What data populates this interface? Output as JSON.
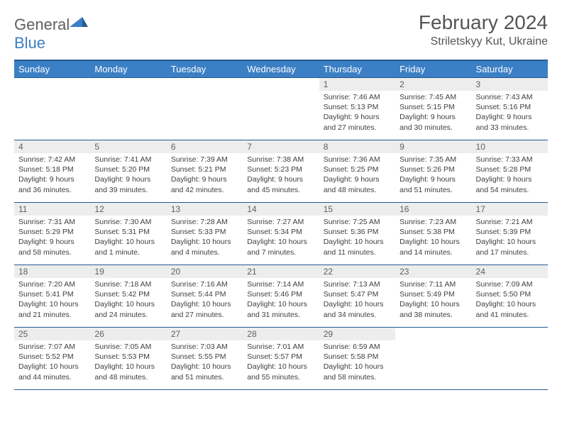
{
  "brand": {
    "name1": "General",
    "name2": "Blue"
  },
  "title": "February 2024",
  "location": "Striletskyy Kut, Ukraine",
  "colors": {
    "primary": "#3b7fc4",
    "header_rule": "#255a8f",
    "daynum_bg": "#ededed",
    "text": "#404040"
  },
  "weekdays": [
    "Sunday",
    "Monday",
    "Tuesday",
    "Wednesday",
    "Thursday",
    "Friday",
    "Saturday"
  ],
  "weeks": [
    [
      {
        "n": "",
        "sr": "",
        "ss": "",
        "dl": ""
      },
      {
        "n": "",
        "sr": "",
        "ss": "",
        "dl": ""
      },
      {
        "n": "",
        "sr": "",
        "ss": "",
        "dl": ""
      },
      {
        "n": "",
        "sr": "",
        "ss": "",
        "dl": ""
      },
      {
        "n": "1",
        "sr": "Sunrise: 7:46 AM",
        "ss": "Sunset: 5:13 PM",
        "dl": "Daylight: 9 hours and 27 minutes."
      },
      {
        "n": "2",
        "sr": "Sunrise: 7:45 AM",
        "ss": "Sunset: 5:15 PM",
        "dl": "Daylight: 9 hours and 30 minutes."
      },
      {
        "n": "3",
        "sr": "Sunrise: 7:43 AM",
        "ss": "Sunset: 5:16 PM",
        "dl": "Daylight: 9 hours and 33 minutes."
      }
    ],
    [
      {
        "n": "4",
        "sr": "Sunrise: 7:42 AM",
        "ss": "Sunset: 5:18 PM",
        "dl": "Daylight: 9 hours and 36 minutes."
      },
      {
        "n": "5",
        "sr": "Sunrise: 7:41 AM",
        "ss": "Sunset: 5:20 PM",
        "dl": "Daylight: 9 hours and 39 minutes."
      },
      {
        "n": "6",
        "sr": "Sunrise: 7:39 AM",
        "ss": "Sunset: 5:21 PM",
        "dl": "Daylight: 9 hours and 42 minutes."
      },
      {
        "n": "7",
        "sr": "Sunrise: 7:38 AM",
        "ss": "Sunset: 5:23 PM",
        "dl": "Daylight: 9 hours and 45 minutes."
      },
      {
        "n": "8",
        "sr": "Sunrise: 7:36 AM",
        "ss": "Sunset: 5:25 PM",
        "dl": "Daylight: 9 hours and 48 minutes."
      },
      {
        "n": "9",
        "sr": "Sunrise: 7:35 AM",
        "ss": "Sunset: 5:26 PM",
        "dl": "Daylight: 9 hours and 51 minutes."
      },
      {
        "n": "10",
        "sr": "Sunrise: 7:33 AM",
        "ss": "Sunset: 5:28 PM",
        "dl": "Daylight: 9 hours and 54 minutes."
      }
    ],
    [
      {
        "n": "11",
        "sr": "Sunrise: 7:31 AM",
        "ss": "Sunset: 5:29 PM",
        "dl": "Daylight: 9 hours and 58 minutes."
      },
      {
        "n": "12",
        "sr": "Sunrise: 7:30 AM",
        "ss": "Sunset: 5:31 PM",
        "dl": "Daylight: 10 hours and 1 minute."
      },
      {
        "n": "13",
        "sr": "Sunrise: 7:28 AM",
        "ss": "Sunset: 5:33 PM",
        "dl": "Daylight: 10 hours and 4 minutes."
      },
      {
        "n": "14",
        "sr": "Sunrise: 7:27 AM",
        "ss": "Sunset: 5:34 PM",
        "dl": "Daylight: 10 hours and 7 minutes."
      },
      {
        "n": "15",
        "sr": "Sunrise: 7:25 AM",
        "ss": "Sunset: 5:36 PM",
        "dl": "Daylight: 10 hours and 11 minutes."
      },
      {
        "n": "16",
        "sr": "Sunrise: 7:23 AM",
        "ss": "Sunset: 5:38 PM",
        "dl": "Daylight: 10 hours and 14 minutes."
      },
      {
        "n": "17",
        "sr": "Sunrise: 7:21 AM",
        "ss": "Sunset: 5:39 PM",
        "dl": "Daylight: 10 hours and 17 minutes."
      }
    ],
    [
      {
        "n": "18",
        "sr": "Sunrise: 7:20 AM",
        "ss": "Sunset: 5:41 PM",
        "dl": "Daylight: 10 hours and 21 minutes."
      },
      {
        "n": "19",
        "sr": "Sunrise: 7:18 AM",
        "ss": "Sunset: 5:42 PM",
        "dl": "Daylight: 10 hours and 24 minutes."
      },
      {
        "n": "20",
        "sr": "Sunrise: 7:16 AM",
        "ss": "Sunset: 5:44 PM",
        "dl": "Daylight: 10 hours and 27 minutes."
      },
      {
        "n": "21",
        "sr": "Sunrise: 7:14 AM",
        "ss": "Sunset: 5:46 PM",
        "dl": "Daylight: 10 hours and 31 minutes."
      },
      {
        "n": "22",
        "sr": "Sunrise: 7:13 AM",
        "ss": "Sunset: 5:47 PM",
        "dl": "Daylight: 10 hours and 34 minutes."
      },
      {
        "n": "23",
        "sr": "Sunrise: 7:11 AM",
        "ss": "Sunset: 5:49 PM",
        "dl": "Daylight: 10 hours and 38 minutes."
      },
      {
        "n": "24",
        "sr": "Sunrise: 7:09 AM",
        "ss": "Sunset: 5:50 PM",
        "dl": "Daylight: 10 hours and 41 minutes."
      }
    ],
    [
      {
        "n": "25",
        "sr": "Sunrise: 7:07 AM",
        "ss": "Sunset: 5:52 PM",
        "dl": "Daylight: 10 hours and 44 minutes."
      },
      {
        "n": "26",
        "sr": "Sunrise: 7:05 AM",
        "ss": "Sunset: 5:53 PM",
        "dl": "Daylight: 10 hours and 48 minutes."
      },
      {
        "n": "27",
        "sr": "Sunrise: 7:03 AM",
        "ss": "Sunset: 5:55 PM",
        "dl": "Daylight: 10 hours and 51 minutes."
      },
      {
        "n": "28",
        "sr": "Sunrise: 7:01 AM",
        "ss": "Sunset: 5:57 PM",
        "dl": "Daylight: 10 hours and 55 minutes."
      },
      {
        "n": "29",
        "sr": "Sunrise: 6:59 AM",
        "ss": "Sunset: 5:58 PM",
        "dl": "Daylight: 10 hours and 58 minutes."
      },
      {
        "n": "",
        "sr": "",
        "ss": "",
        "dl": ""
      },
      {
        "n": "",
        "sr": "",
        "ss": "",
        "dl": ""
      }
    ]
  ]
}
